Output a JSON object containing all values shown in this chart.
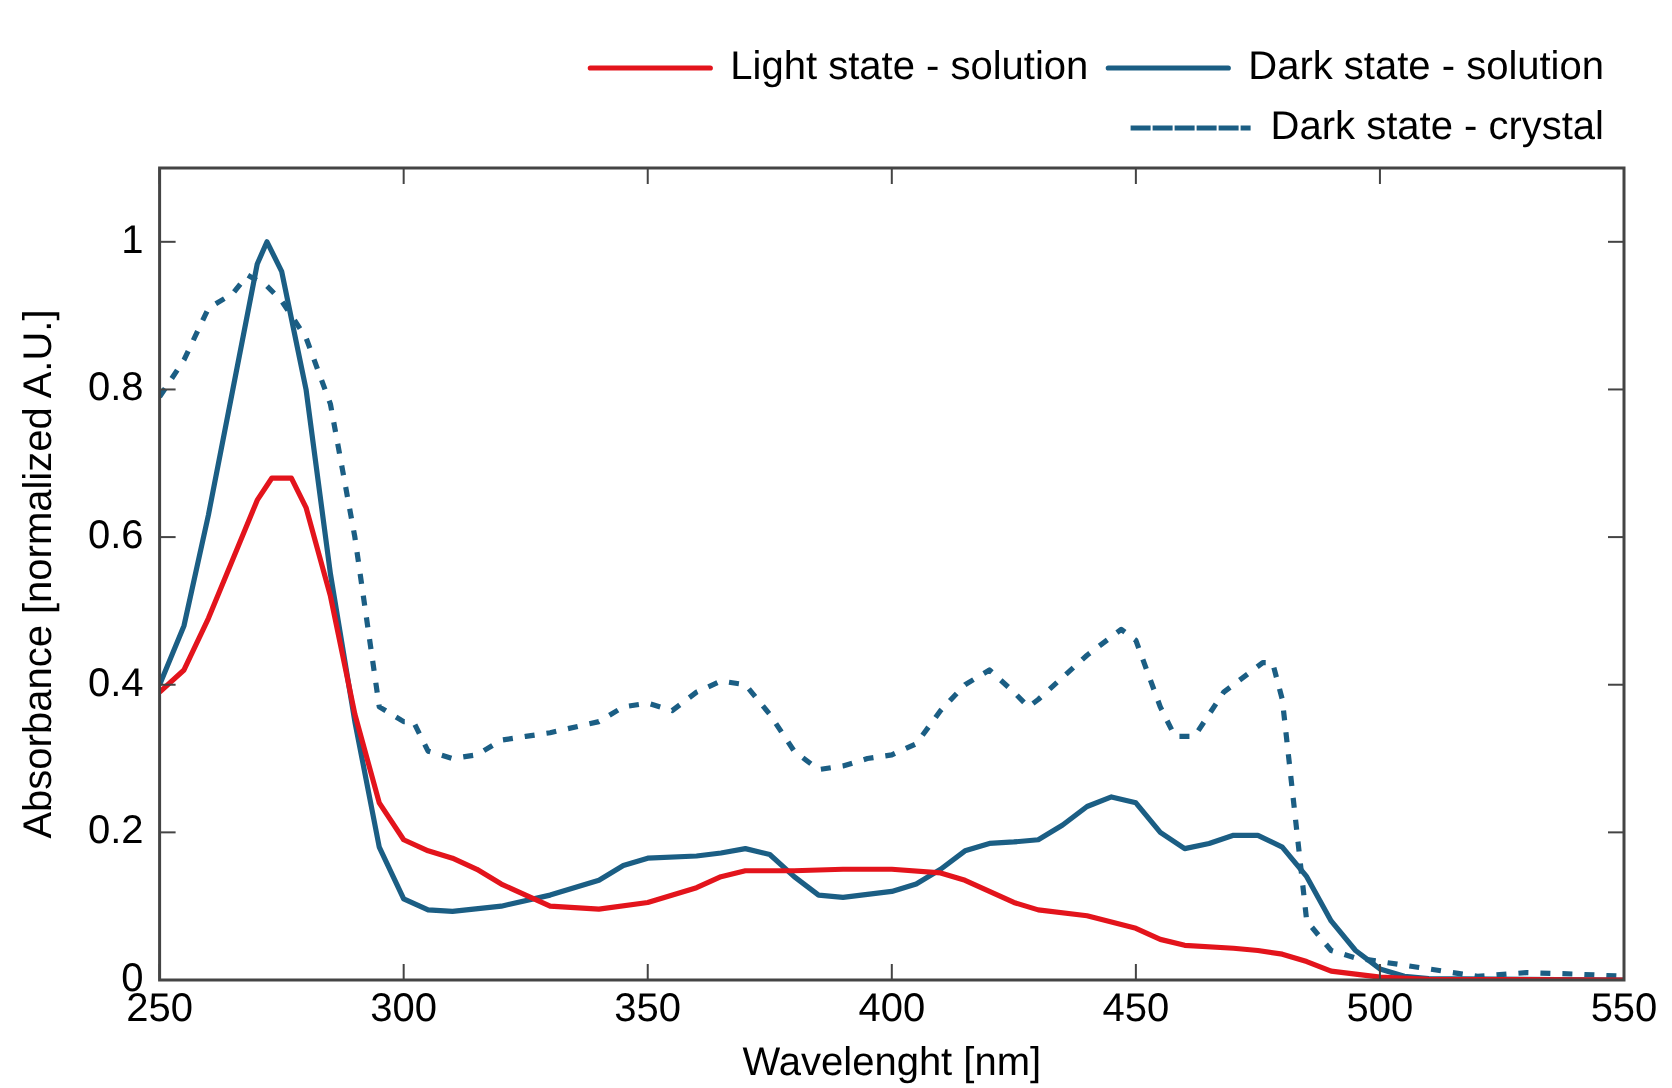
{
  "chart_data": {
    "type": "line",
    "xlabel": "Wavelenght [nm]",
    "ylabel": "Absorbance [normalized A.U.]",
    "xlim": [
      250,
      550
    ],
    "xticks": [
      250,
      300,
      350,
      400,
      450,
      500,
      550
    ],
    "ylim": [
      0,
      1.1
    ],
    "yticks": [
      0,
      0.2,
      0.4,
      0.6,
      0.8,
      1
    ],
    "grid": false,
    "legend": "top right",
    "marker": "none",
    "series": [
      {
        "name": "Dark state - crystal",
        "color": "#1b5e84",
        "line_style": "dotted",
        "x": [
          250,
          255,
          260,
          265,
          268,
          272,
          275,
          280,
          285,
          290,
          295,
          300,
          302,
          305,
          310,
          315,
          320,
          325,
          330,
          340,
          345,
          350,
          355,
          360,
          365,
          370,
          375,
          380,
          385,
          390,
          395,
          400,
          405,
          410,
          415,
          420,
          425,
          428,
          430,
          435,
          440,
          445,
          447,
          450,
          455,
          458,
          462,
          465,
          468,
          472,
          476,
          478,
          480,
          483,
          485,
          490,
          495,
          500,
          510,
          520,
          530,
          540,
          550
        ],
        "values": [
          0.79,
          0.84,
          0.91,
          0.93,
          0.955,
          0.94,
          0.92,
          0.87,
          0.78,
          0.6,
          0.37,
          0.35,
          0.35,
          0.31,
          0.3,
          0.305,
          0.325,
          0.33,
          0.335,
          0.35,
          0.37,
          0.375,
          0.365,
          0.39,
          0.405,
          0.4,
          0.36,
          0.31,
          0.285,
          0.29,
          0.3,
          0.305,
          0.32,
          0.365,
          0.4,
          0.42,
          0.39,
          0.37,
          0.38,
          0.41,
          0.44,
          0.465,
          0.475,
          0.46,
          0.37,
          0.33,
          0.33,
          0.36,
          0.39,
          0.41,
          0.43,
          0.43,
          0.38,
          0.2,
          0.08,
          0.04,
          0.03,
          0.025,
          0.015,
          0.005,
          0.01,
          0.008,
          0.005
        ]
      },
      {
        "name": "Dark state - solution",
        "color": "#1b5e84",
        "line_style": "solid",
        "x": [
          250,
          255,
          260,
          265,
          270,
          272,
          275,
          280,
          285,
          290,
          295,
          300,
          305,
          310,
          320,
          330,
          340,
          345,
          350,
          360,
          365,
          370,
          375,
          380,
          385,
          390,
          400,
          405,
          410,
          415,
          420,
          425,
          430,
          435,
          440,
          445,
          450,
          455,
          460,
          465,
          470,
          475,
          480,
          485,
          490,
          495,
          500,
          505,
          510,
          550
        ],
        "values": [
          0.4,
          0.48,
          0.63,
          0.8,
          0.97,
          1,
          0.96,
          0.8,
          0.55,
          0.35,
          0.18,
          0.11,
          0.095,
          0.093,
          0.1,
          0.115,
          0.135,
          0.155,
          0.165,
          0.168,
          0.172,
          0.178,
          0.17,
          0.14,
          0.115,
          0.112,
          0.12,
          0.13,
          0.15,
          0.175,
          0.185,
          0.187,
          0.19,
          0.21,
          0.235,
          0.248,
          0.24,
          0.2,
          0.178,
          0.185,
          0.196,
          0.196,
          0.18,
          0.14,
          0.08,
          0.04,
          0.015,
          0.005,
          0.002,
          0
        ]
      },
      {
        "name": "Light state - solution",
        "color": "#e3141c",
        "line_style": "solid",
        "x": [
          250,
          255,
          260,
          265,
          270,
          273,
          277,
          280,
          285,
          290,
          295,
          300,
          305,
          310,
          315,
          320,
          325,
          330,
          340,
          350,
          360,
          365,
          370,
          380,
          390,
          400,
          410,
          415,
          420,
          425,
          430,
          440,
          450,
          455,
          460,
          470,
          475,
          480,
          485,
          490,
          500,
          510,
          550
        ],
        "values": [
          0.39,
          0.42,
          0.49,
          0.57,
          0.65,
          0.68,
          0.68,
          0.64,
          0.52,
          0.36,
          0.24,
          0.19,
          0.175,
          0.165,
          0.15,
          0.13,
          0.115,
          0.1,
          0.096,
          0.105,
          0.125,
          0.14,
          0.148,
          0.148,
          0.15,
          0.15,
          0.145,
          0.135,
          0.12,
          0.105,
          0.095,
          0.087,
          0.07,
          0.055,
          0.047,
          0.043,
          0.04,
          0.035,
          0.025,
          0.012,
          0.004,
          0.001,
          0
        ]
      }
    ]
  }
}
